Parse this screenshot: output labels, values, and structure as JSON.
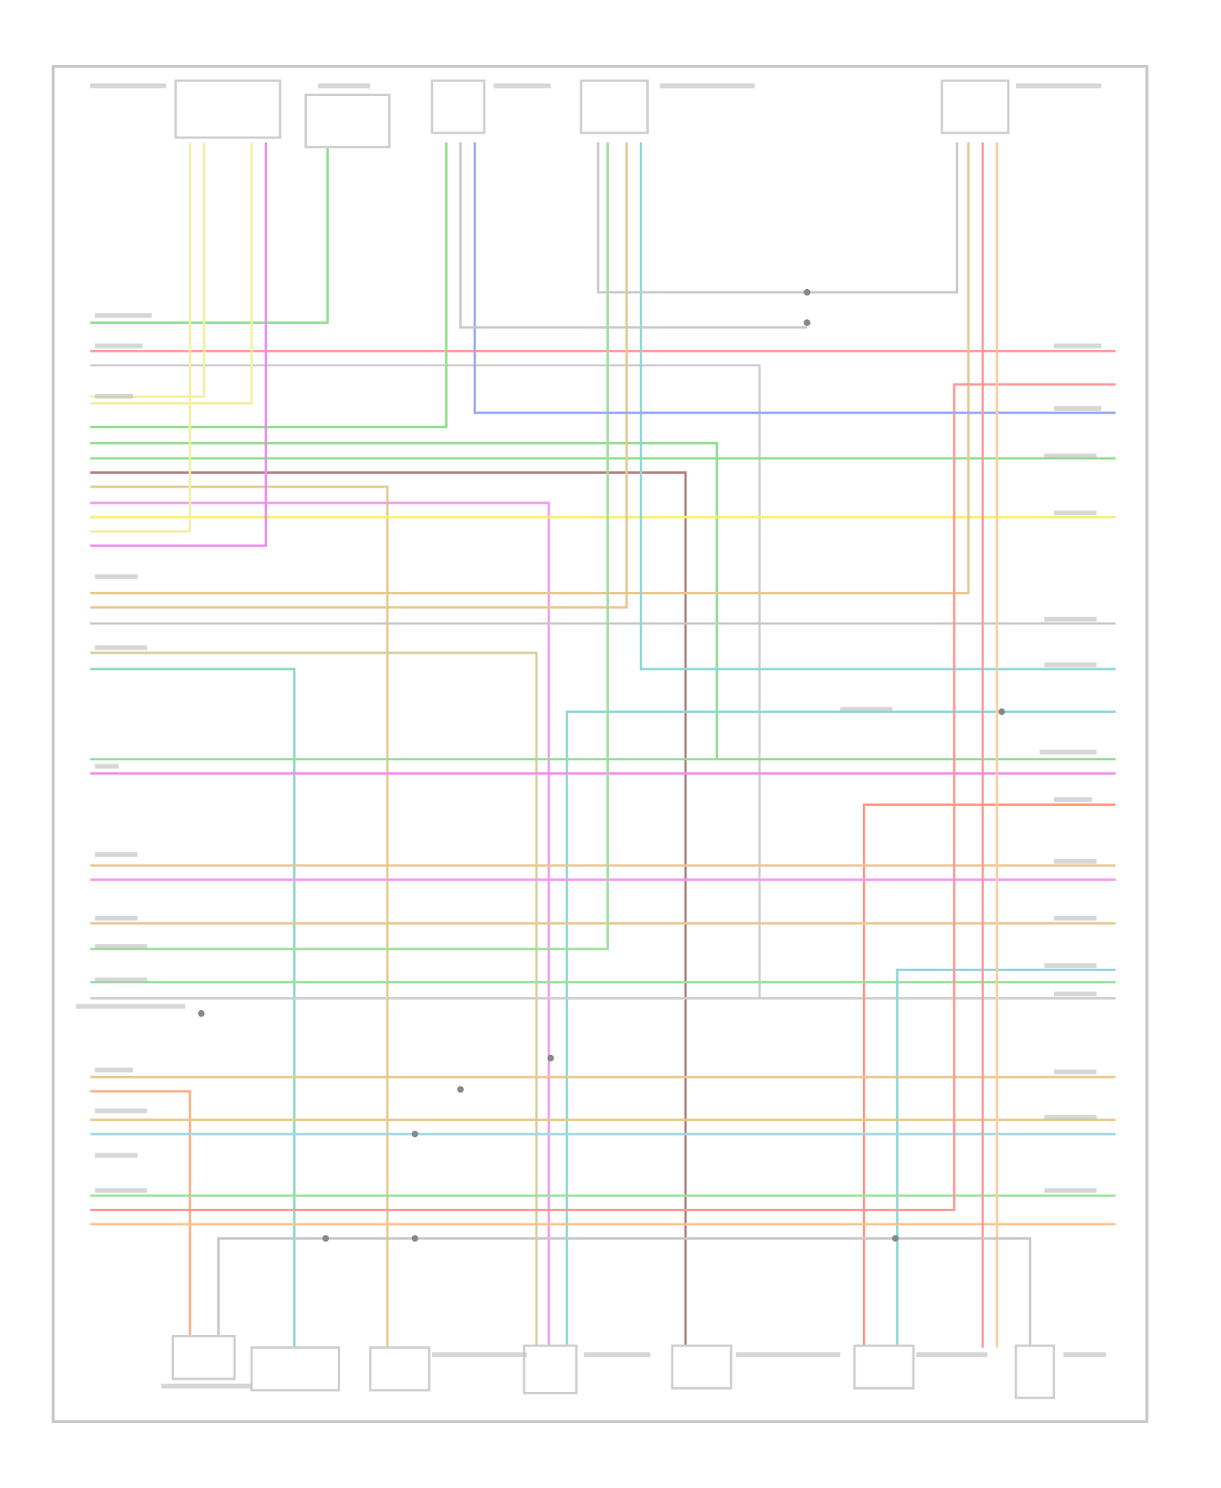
{
  "diagram": {
    "frame_color": "#c8c8c8",
    "label_color": "#bdbdbd",
    "component_color": "#cfcfcf",
    "wires": [
      "#8fe08f",
      "#ff9a9a",
      "#cfcfcf",
      "#f3f0a0",
      "#f3f0a0",
      "#8fe08f",
      "#8fe08f",
      "#8fe08f",
      "#b08080",
      "#e8c890",
      "#f59af0",
      "#f5ef80",
      "#f3f0a0",
      "#f08cf0",
      "#e8c890",
      "#e8c890",
      "#c8c8c8",
      "#d6cf9a",
      "#8fd8c8",
      "#8fd8d8",
      "#8fd8d8",
      "#98e098",
      "#f08cf0",
      "#ff9a80",
      "#e8c890",
      "#f59af0",
      "#e8c890",
      "#9fe09f",
      "#9fe09f",
      "#8fd8d8",
      "#cfcfcf",
      "#e8c890",
      "#ffb080",
      "#e8c890",
      "#9fd8e8",
      "#9fe09f",
      "#ff9a9a",
      "#ffc090",
      "#9aa8f0",
      "#ff9a9a",
      "#f5d0a0"
    ]
  }
}
